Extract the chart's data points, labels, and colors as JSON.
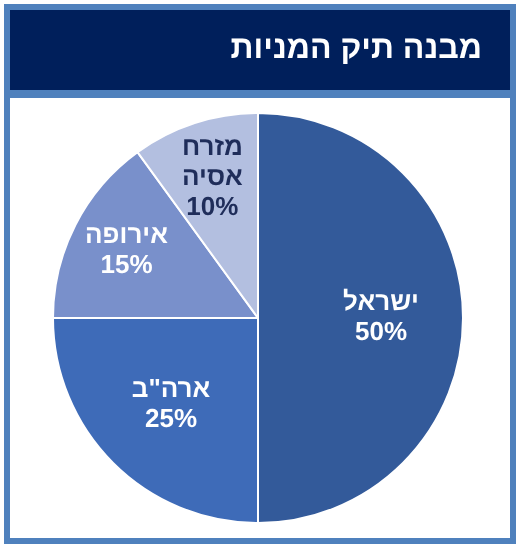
{
  "chart_data": {
    "type": "pie",
    "title": "מבנה תיק המניות",
    "categories": [
      "ישראל",
      "ארה\"ב",
      "אירופה",
      "מזרח אסיה"
    ],
    "values": [
      50,
      25,
      15,
      10
    ],
    "colors": [
      "#335a9a",
      "#3e6bb8",
      "#7990cb",
      "#b3bfe0"
    ],
    "value_labels": [
      "50%",
      "25%",
      "15%",
      "10%"
    ],
    "legend": false
  }
}
